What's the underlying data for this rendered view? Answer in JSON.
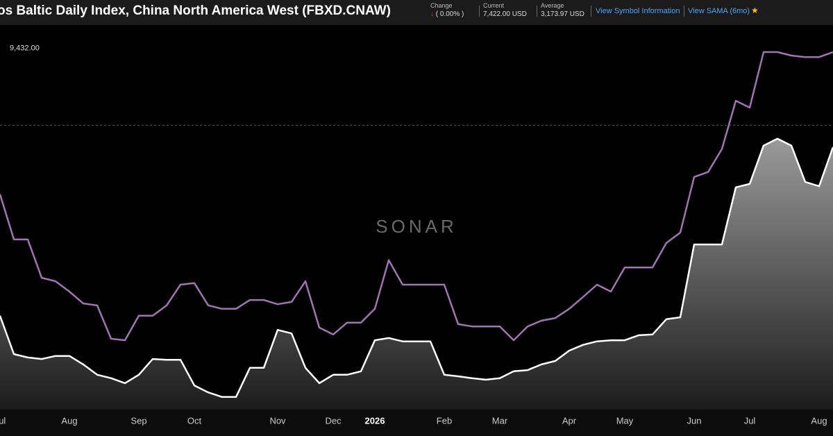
{
  "header": {
    "title": "os Baltic Daily Index, China North America West (FBXD.CNAW)",
    "change_label": "Change",
    "change_value": "( 0.00% )",
    "current_label": "Current",
    "current_value": "7,422.00 USD",
    "average_label": "Average",
    "average_value": "3,173.97 USD",
    "link_info": "View Symbol Information",
    "link_sama": "View SAMA (6mo)"
  },
  "watermark": "SONAR",
  "chart_data": {
    "type": "line",
    "categories": [
      "Jul",
      null,
      null,
      null,
      null,
      "Aug",
      null,
      null,
      null,
      null,
      "Sep",
      null,
      null,
      null,
      "Oct",
      null,
      null,
      null,
      null,
      null,
      "Nov",
      null,
      null,
      null,
      "Dec",
      null,
      null,
      "2026",
      null,
      null,
      null,
      null,
      "Feb",
      null,
      null,
      null,
      "Mar",
      null,
      null,
      null,
      null,
      "Apr",
      null,
      null,
      null,
      "May",
      null,
      null,
      null,
      null,
      "Jun",
      null,
      null,
      null,
      "Jul",
      null,
      null,
      null,
      null,
      "Aug",
      null
    ],
    "series": [
      {
        "color": "#ffffff",
        "area": true,
        "values": [
          2450,
          1450,
          1360,
          1320,
          1400,
          1400,
          1180,
          910,
          820,
          690,
          910,
          1320,
          1300,
          1300,
          630,
          450,
          330,
          330,
          1090,
          1090,
          2080,
          1990,
          1090,
          690,
          910,
          910,
          1000,
          1810,
          1870,
          1780,
          1780,
          1780,
          910,
          870,
          820,
          780,
          820,
          1000,
          1030,
          1180,
          1270,
          1540,
          1690,
          1780,
          1810,
          1810,
          1940,
          1960,
          2360,
          2410,
          4310,
          4310,
          4310,
          5800,
          5890,
          6890,
          7070,
          6890,
          5940,
          5830,
          6850
        ]
      },
      {
        "color": "#a373b3",
        "area": false,
        "values": [
          5620,
          4440,
          4440,
          3440,
          3350,
          3080,
          2770,
          2720,
          1850,
          1810,
          2450,
          2450,
          2720,
          3260,
          3300,
          2720,
          2630,
          2630,
          2860,
          2860,
          2750,
          2810,
          3350,
          2140,
          1960,
          2270,
          2270,
          2630,
          3900,
          3260,
          3260,
          3260,
          3260,
          2230,
          2170,
          2170,
          2170,
          1810,
          2170,
          2320,
          2390,
          2630,
          2940,
          3260,
          3080,
          3710,
          3710,
          3710,
          4350,
          4620,
          6070,
          6200,
          6800,
          8060,
          7880,
          9330,
          9330,
          9240,
          9200,
          9200,
          9330
        ]
      }
    ],
    "ylim": [
      0,
      10000
    ],
    "yticks": [
      {
        "value": 9432,
        "label": "9,432.00"
      }
    ],
    "reference_line": 7422,
    "grid": false
  }
}
